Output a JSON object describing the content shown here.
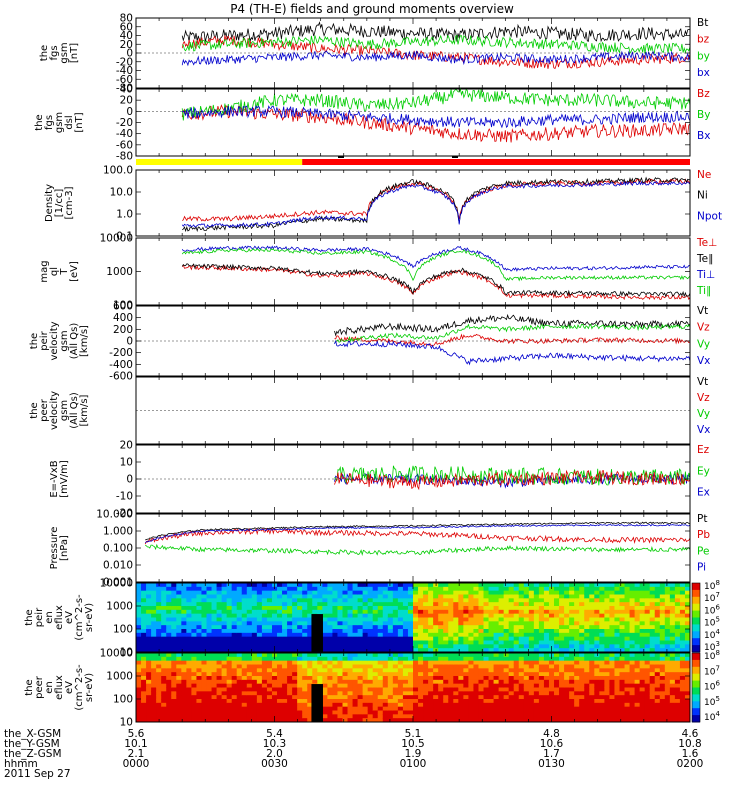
{
  "title": "P4 (TH-E) fields and ground moments overview",
  "colors": {
    "black": "#000000",
    "red": "#dd0000",
    "green": "#00cc00",
    "blue": "#0000cc",
    "yellow": "#ffff00",
    "barred": "#ff0000"
  },
  "x_axis": {
    "rows": [
      {
        "label": "the_X-GSM",
        "values": [
          "5.6",
          "5.4",
          "5.1",
          "4.8",
          "4.6"
        ]
      },
      {
        "label": "the_Y-GSM",
        "values": [
          "10.1",
          "10.3",
          "10.5",
          "10.6",
          "10.8"
        ]
      },
      {
        "label": "the_Z-GSM",
        "values": [
          "2.1",
          "2.0",
          "1.9",
          "1.7",
          "1.6"
        ]
      },
      {
        "label": "hhmm",
        "values": [
          "0000",
          "0030",
          "0100",
          "0130",
          "0200"
        ]
      }
    ],
    "date": "2011 Sep 27",
    "range_minutes": [
      0,
      120
    ]
  },
  "chart_data": [
    {
      "type": "line",
      "id": "fgs-fgs",
      "ylabel": [
        "the",
        "fgs",
        "gsm",
        "[nT]"
      ],
      "yticks": [
        "80",
        "60",
        "40",
        "20",
        "0",
        "-20",
        "-40",
        "-60",
        "-80"
      ],
      "ylim": [
        -80,
        80
      ],
      "legend": [
        {
          "label": "Bt",
          "color": "#000000"
        },
        {
          "label": "bz",
          "color": "#dd0000"
        },
        {
          "label": "by",
          "color": "#00cc00"
        },
        {
          "label": "bx",
          "color": "#0000cc"
        }
      ],
      "series": [
        {
          "color": "#000000",
          "start": 10,
          "end": 120,
          "x": [
            10,
            20,
            30,
            40,
            50,
            60,
            70,
            80,
            90,
            100,
            110,
            120
          ],
          "y": [
            35,
            40,
            45,
            55,
            50,
            45,
            40,
            50,
            45,
            40,
            45,
            40
          ],
          "noise": 15
        },
        {
          "color": "#dd0000",
          "start": 10,
          "end": 120,
          "x": [
            10,
            20,
            30,
            40,
            50,
            60,
            70,
            80,
            90,
            100,
            110,
            120
          ],
          "y": [
            20,
            30,
            20,
            10,
            5,
            -5,
            -10,
            -20,
            -25,
            -20,
            -15,
            -10
          ],
          "noise": 12
        },
        {
          "color": "#00cc00",
          "start": 10,
          "end": 120,
          "x": [
            10,
            20,
            30,
            40,
            50,
            60,
            70,
            80,
            90,
            100,
            110,
            120
          ],
          "y": [
            15,
            20,
            25,
            30,
            20,
            25,
            30,
            25,
            20,
            15,
            10,
            10
          ],
          "noise": 12
        },
        {
          "color": "#0000cc",
          "start": 10,
          "end": 120,
          "x": [
            10,
            20,
            30,
            40,
            50,
            60,
            70,
            80,
            90,
            100,
            110,
            120
          ],
          "y": [
            -20,
            -15,
            -10,
            -5,
            -10,
            -5,
            -15,
            -10,
            -15,
            -10,
            -5,
            -10
          ],
          "noise": 10
        }
      ]
    },
    {
      "type": "line",
      "id": "fgs-dsl",
      "ylabel": [
        "the",
        "fgs",
        "gsm",
        "dsl",
        "[nT]"
      ],
      "yticks": [
        "40",
        "20",
        "0",
        "-20",
        "-40",
        "-60",
        "-80"
      ],
      "ylim": [
        -80,
        40
      ],
      "legend": [
        {
          "label": "Bz",
          "color": "#dd0000"
        },
        {
          "label": "By",
          "color": "#00cc00"
        },
        {
          "label": "Bx",
          "color": "#0000cc"
        }
      ],
      "series": [
        {
          "color": "#dd0000",
          "start": 10,
          "end": 120,
          "x": [
            10,
            20,
            30,
            40,
            50,
            60,
            70,
            80,
            90,
            100,
            110,
            120
          ],
          "y": [
            -5,
            0,
            -5,
            -10,
            -20,
            -30,
            -40,
            -45,
            -40,
            -35,
            -35,
            -30
          ],
          "noise": 12
        },
        {
          "color": "#00cc00",
          "start": 10,
          "end": 120,
          "x": [
            10,
            20,
            30,
            40,
            50,
            60,
            70,
            80,
            90,
            100,
            110,
            120
          ],
          "y": [
            -5,
            5,
            20,
            20,
            10,
            15,
            30,
            25,
            20,
            20,
            15,
            15
          ],
          "noise": 12
        },
        {
          "color": "#0000cc",
          "start": 10,
          "end": 120,
          "x": [
            10,
            20,
            30,
            40,
            50,
            60,
            70,
            80,
            90,
            100,
            110,
            120
          ],
          "y": [
            -5,
            0,
            0,
            -5,
            -10,
            -15,
            -20,
            -20,
            -15,
            -15,
            -10,
            -10
          ],
          "noise": 10
        }
      ]
    },
    {
      "type": "line",
      "id": "density",
      "log": true,
      "ylabel": [
        "Density",
        "[1/cc]",
        "[cm-3]"
      ],
      "yticks": [
        "100.0",
        "10.0",
        "1.0",
        "0.1"
      ],
      "ylim": [
        0.1,
        100
      ],
      "legend": [
        {
          "label": "Ne",
          "color": "#dd0000"
        },
        {
          "label": "Ni",
          "color": "#000000"
        },
        {
          "label": "Npot",
          "color": "#0000cc"
        }
      ],
      "series": [
        {
          "color": "#dd0000",
          "start": 10,
          "end": 120,
          "x": [
            10,
            20,
            30,
            40,
            50,
            60,
            70,
            80,
            90,
            100,
            110,
            120
          ],
          "y": [
            0.6,
            0.6,
            0.8,
            1.2,
            1.0,
            25,
            0.5,
            20,
            25,
            25,
            30,
            30
          ],
          "noise": 0.25
        },
        {
          "color": "#000000",
          "start": 10,
          "end": 120,
          "x": [
            10,
            20,
            30,
            40,
            50,
            60,
            70,
            80,
            90,
            100,
            110,
            120
          ],
          "y": [
            0.2,
            0.25,
            0.3,
            0.6,
            0.5,
            30,
            0.3,
            25,
            30,
            30,
            35,
            35
          ],
          "noise": 0.25
        },
        {
          "color": "#0000cc",
          "start": 10,
          "end": 120,
          "x": [
            10,
            20,
            30,
            40,
            50,
            60,
            70,
            80,
            90,
            100,
            110,
            120
          ],
          "y": [
            0.3,
            0.3,
            0.35,
            0.7,
            0.6,
            20,
            0.4,
            18,
            20,
            22,
            25,
            25
          ],
          "noise": 0.2
        }
      ]
    },
    {
      "type": "line",
      "id": "temperature",
      "log": true,
      "ylabel": [
        "mag",
        "ql",
        "T",
        "[eV]"
      ],
      "yticks": [
        "10000",
        "1000",
        "100"
      ],
      "ylim": [
        30,
        12000
      ],
      "legend": [
        {
          "label": "Te⊥",
          "color": "#dd0000"
        },
        {
          "label": "Te∥",
          "color": "#000000"
        },
        {
          "label": "Ti⊥",
          "color": "#0000cc"
        },
        {
          "label": "Ti∥",
          "color": "#00cc00"
        }
      ],
      "series": [
        {
          "color": "#dd0000",
          "start": 10,
          "end": 120,
          "x": [
            10,
            20,
            30,
            40,
            50,
            60,
            70,
            80,
            90,
            100,
            110,
            120
          ],
          "y": [
            900,
            800,
            700,
            400,
            500,
            80,
            600,
            70,
            70,
            65,
            60,
            60
          ],
          "noise": 0.2
        },
        {
          "color": "#000000",
          "start": 10,
          "end": 120,
          "x": [
            10,
            20,
            30,
            40,
            50,
            60,
            70,
            80,
            90,
            100,
            110,
            120
          ],
          "y": [
            1000,
            900,
            800,
            500,
            600,
            100,
            700,
            90,
            90,
            85,
            80,
            80
          ],
          "noise": 0.2
        },
        {
          "color": "#0000cc",
          "start": 10,
          "end": 120,
          "x": [
            10,
            20,
            30,
            40,
            50,
            60,
            70,
            80,
            90,
            100,
            110,
            120
          ],
          "y": [
            4000,
            5000,
            5000,
            4000,
            4500,
            900,
            5000,
            700,
            800,
            800,
            900,
            900
          ],
          "noise": 0.15
        },
        {
          "color": "#00cc00",
          "start": 10,
          "end": 120,
          "x": [
            10,
            20,
            30,
            40,
            50,
            60,
            70,
            80,
            90,
            100,
            110,
            120
          ],
          "y": [
            3000,
            4000,
            4000,
            3000,
            3500,
            300,
            4000,
            300,
            350,
            350,
            350,
            350
          ],
          "noise": 0.15
        }
      ]
    },
    {
      "type": "line",
      "id": "peir-velocity",
      "ylabel": [
        "the",
        "peir",
        "velocity",
        "gsm",
        "(All Qs)",
        "[km/s]"
      ],
      "yticks": [
        "600",
        "400",
        "200",
        "0",
        "-200",
        "-400",
        "-600"
      ],
      "ylim": [
        -600,
        600
      ],
      "legend": [
        {
          "label": "Vt",
          "color": "#000000"
        },
        {
          "label": "Vz",
          "color": "#dd0000"
        },
        {
          "label": "Vy",
          "color": "#00cc00"
        },
        {
          "label": "Vx",
          "color": "#0000cc"
        }
      ],
      "series": [
        {
          "color": "#000000",
          "start": 43,
          "end": 120,
          "x": [
            43,
            55,
            65,
            72,
            80,
            90,
            100,
            110,
            120
          ],
          "y": [
            150,
            250,
            200,
            350,
            400,
            300,
            300,
            280,
            300
          ],
          "noise": 60
        },
        {
          "color": "#dd0000",
          "start": 43,
          "end": 120,
          "x": [
            43,
            55,
            65,
            72,
            80,
            90,
            100,
            110,
            120
          ],
          "y": [
            50,
            0,
            -50,
            100,
            0,
            0,
            20,
            10,
            0
          ],
          "noise": 40
        },
        {
          "color": "#00cc00",
          "start": 43,
          "end": 120,
          "x": [
            43,
            55,
            65,
            72,
            80,
            90,
            100,
            110,
            120
          ],
          "y": [
            0,
            100,
            50,
            250,
            200,
            250,
            250,
            230,
            250
          ],
          "noise": 40
        },
        {
          "color": "#0000cc",
          "start": 43,
          "end": 120,
          "x": [
            43,
            55,
            65,
            72,
            80,
            90,
            100,
            110,
            120
          ],
          "y": [
            -50,
            -50,
            -100,
            -350,
            -300,
            -250,
            -280,
            -300,
            -300
          ],
          "noise": 50
        }
      ]
    },
    {
      "type": "line",
      "id": "peer-velocity",
      "ylabel": [
        "the",
        "peer",
        "velocity",
        "gsm",
        "(All Qs)",
        "[km/s]"
      ],
      "yticks": [],
      "ylim": [
        -600,
        600
      ],
      "legend": [
        {
          "label": "Vt",
          "color": "#000000"
        },
        {
          "label": "Vz",
          "color": "#dd0000"
        },
        {
          "label": "Vy",
          "color": "#00cc00"
        },
        {
          "label": "Vx",
          "color": "#0000cc"
        }
      ],
      "series": []
    },
    {
      "type": "line",
      "id": "efield",
      "ylabel": [
        "E=-VxB",
        "[mV/m]"
      ],
      "yticks": [
        "20",
        "10",
        "0",
        "-10",
        "-20"
      ],
      "ylim": [
        -20,
        20
      ],
      "legend": [
        {
          "label": "Ez",
          "color": "#dd0000"
        },
        {
          "label": "Ey",
          "color": "#00cc00"
        },
        {
          "label": "Ex",
          "color": "#0000cc"
        }
      ],
      "series": [
        {
          "color": "#0000cc",
          "start": 43,
          "end": 120,
          "x": [
            43,
            60,
            80,
            100,
            120
          ],
          "y": [
            0,
            0,
            -2,
            0,
            0
          ],
          "noise": 3
        },
        {
          "color": "#00cc00",
          "start": 43,
          "end": 120,
          "x": [
            43,
            60,
            80,
            100,
            120
          ],
          "y": [
            2,
            3,
            2,
            1,
            1
          ],
          "noise": 5
        },
        {
          "color": "#dd0000",
          "start": 43,
          "end": 120,
          "x": [
            43,
            60,
            80,
            100,
            120
          ],
          "y": [
            0,
            -2,
            0,
            1,
            0
          ],
          "noise": 4
        }
      ]
    },
    {
      "type": "line",
      "id": "pressure",
      "log": true,
      "ylabel": [
        "Pressure",
        "[nPa]"
      ],
      "yticks": [
        "10.000",
        "1.000",
        "0.100",
        "0.010",
        "0.001"
      ],
      "ylim": [
        0.001,
        10
      ],
      "legend": [
        {
          "label": "Pt",
          "color": "#000000"
        },
        {
          "label": "Pb",
          "color": "#dd0000"
        },
        {
          "label": "Pe",
          "color": "#00cc00"
        },
        {
          "label": "Pi",
          "color": "#0000cc"
        }
      ],
      "series": [
        {
          "color": "#000000",
          "start": 2,
          "end": 120,
          "x": [
            2,
            15,
            30,
            40,
            60,
            80,
            100,
            120
          ],
          "y": [
            0.3,
            1.2,
            1.5,
            1.8,
            2,
            2.5,
            3,
            3
          ],
          "noise": 0.1
        },
        {
          "color": "#dd0000",
          "start": 2,
          "end": 120,
          "x": [
            2,
            15,
            30,
            40,
            60,
            80,
            100,
            120
          ],
          "y": [
            0.2,
            0.8,
            1,
            0.8,
            0.7,
            0.4,
            0.3,
            0.3
          ],
          "noise": 0.35
        },
        {
          "color": "#00cc00",
          "start": 2,
          "end": 120,
          "x": [
            2,
            15,
            30,
            40,
            60,
            80,
            100,
            120
          ],
          "y": [
            0.12,
            0.08,
            0.07,
            0.06,
            0.05,
            0.1,
            0.08,
            0.08
          ],
          "noise": 0.3
        },
        {
          "color": "#0000cc",
          "start": 2,
          "end": 120,
          "x": [
            2,
            15,
            30,
            40,
            60,
            80,
            100,
            120
          ],
          "y": [
            0.2,
            1,
            1.2,
            1.5,
            1.6,
            2,
            2.2,
            2.2
          ],
          "noise": 0.1
        }
      ]
    },
    {
      "type": "heatmap",
      "id": "peir-eflux",
      "ylabel": [
        "the",
        "peir",
        "en",
        "eflux",
        "eV",
        "(cm^2-s-",
        "sr-eV)"
      ],
      "yticks": [
        "10000",
        "1000",
        "100",
        "10"
      ],
      "colorbar_ticks": [
        "10^8",
        "10^7",
        "10^6",
        "10^5",
        "10^4",
        "10^3"
      ]
    },
    {
      "type": "heatmap",
      "id": "peer-eflux",
      "ylabel": [
        "the",
        "peer",
        "en",
        "eflux",
        "eV",
        "(cm^2-s-",
        "sr-eV)"
      ],
      "yticks": [
        "10000",
        "1000",
        "100",
        "10"
      ],
      "colorbar_ticks": [
        "10^8",
        "10^7",
        "10^6",
        "10^5",
        "10^4"
      ]
    }
  ],
  "mode_bar": {
    "segments": [
      {
        "from": 0,
        "to": 36,
        "color": "#ffff00"
      },
      {
        "from": 36,
        "to": 120,
        "color": "#ff0000"
      }
    ]
  }
}
